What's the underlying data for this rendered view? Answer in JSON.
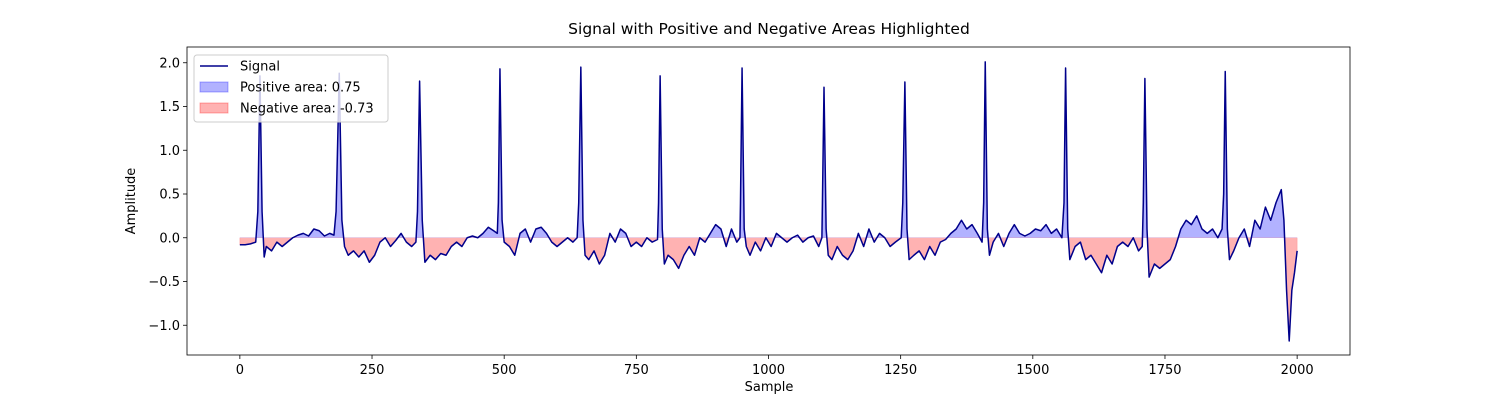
{
  "chart_data": {
    "type": "line",
    "title": "Signal with Positive and Negative Areas Highlighted",
    "x_label": "Sample",
    "y_label": "Amplitude",
    "xlim": [
      -100,
      2100
    ],
    "ylim": [
      -1.34,
      2.18
    ],
    "xticks": [
      0,
      250,
      500,
      750,
      1000,
      1250,
      1500,
      1750,
      2000
    ],
    "yticks": [
      {
        "value": -1,
        "label": "−1.0"
      },
      {
        "value": -0.5,
        "label": "−0.5"
      },
      {
        "value": 0,
        "label": "0.0"
      },
      0.5,
      {
        "value": 1,
        "label": "1.0"
      },
      1.5,
      {
        "value": 2,
        "label": "2.0"
      }
    ],
    "legend": "upper left",
    "x": [
      0,
      10,
      20,
      30,
      34,
      38,
      42,
      46,
      50,
      60,
      70,
      80,
      90,
      100,
      110,
      120,
      130,
      140,
      150,
      160,
      170,
      178,
      182,
      188,
      193,
      198,
      205,
      215,
      225,
      235,
      245,
      255,
      265,
      275,
      285,
      295,
      305,
      315,
      325,
      333,
      336,
      340,
      345,
      350,
      360,
      370,
      380,
      390,
      400,
      410,
      420,
      430,
      440,
      450,
      460,
      470,
      480,
      487,
      489,
      492,
      496,
      500,
      510,
      520,
      530,
      540,
      550,
      560,
      570,
      580,
      590,
      600,
      610,
      620,
      630,
      638,
      641,
      645,
      649,
      653,
      660,
      670,
      680,
      690,
      700,
      710,
      720,
      730,
      740,
      750,
      760,
      770,
      780,
      790,
      792,
      795,
      799,
      803,
      810,
      820,
      830,
      840,
      850,
      860,
      870,
      880,
      890,
      900,
      910,
      920,
      930,
      940,
      946,
      947,
      950,
      954,
      958,
      965,
      975,
      985,
      995,
      1005,
      1015,
      1025,
      1035,
      1045,
      1055,
      1065,
      1075,
      1085,
      1095,
      1101,
      1102,
      1105,
      1109,
      1113,
      1120,
      1130,
      1140,
      1150,
      1160,
      1170,
      1180,
      1190,
      1200,
      1210,
      1220,
      1230,
      1240,
      1251,
      1254,
      1258,
      1262,
      1266,
      1275,
      1285,
      1295,
      1305,
      1315,
      1325,
      1335,
      1345,
      1355,
      1365,
      1375,
      1385,
      1395,
      1404,
      1407,
      1410,
      1414,
      1418,
      1425,
      1435,
      1445,
      1455,
      1465,
      1475,
      1485,
      1495,
      1505,
      1515,
      1525,
      1535,
      1545,
      1555,
      1559,
      1562,
      1566,
      1570,
      1580,
      1590,
      1600,
      1610,
      1620,
      1630,
      1640,
      1650,
      1660,
      1670,
      1680,
      1690,
      1700,
      1707,
      1709,
      1712,
      1716,
      1720,
      1730,
      1740,
      1750,
      1760,
      1770,
      1780,
      1790,
      1800,
      1810,
      1820,
      1830,
      1840,
      1850,
      1858,
      1861,
      1864,
      1868,
      1872,
      1880,
      1890,
      1900,
      1910,
      1920,
      1930,
      1940,
      1950,
      1960,
      1970,
      1975,
      1980,
      1985,
      1990,
      1995,
      2000
    ],
    "series": [
      {
        "name": "Signal",
        "color": "#00008b",
        "values": [
          -0.08,
          -0.08,
          -0.07,
          -0.05,
          0.3,
          1.85,
          0.3,
          -0.22,
          -0.1,
          -0.15,
          -0.05,
          -0.1,
          -0.05,
          0.0,
          0.03,
          0.05,
          0.02,
          0.1,
          0.08,
          0.02,
          0.05,
          0.03,
          0.3,
          1.88,
          0.2,
          -0.1,
          -0.2,
          -0.15,
          -0.22,
          -0.15,
          -0.28,
          -0.2,
          -0.05,
          0.0,
          -0.1,
          -0.03,
          0.05,
          -0.05,
          -0.1,
          -0.05,
          0.3,
          1.79,
          0.2,
          -0.28,
          -0.2,
          -0.25,
          -0.18,
          -0.2,
          -0.1,
          -0.05,
          -0.1,
          0.0,
          0.02,
          0.0,
          0.05,
          0.12,
          0.08,
          0.05,
          0.4,
          1.93,
          0.2,
          -0.05,
          -0.1,
          -0.2,
          0.05,
          0.1,
          -0.05,
          0.1,
          0.12,
          0.05,
          -0.05,
          -0.1,
          -0.05,
          0.0,
          -0.05,
          0.0,
          0.4,
          1.95,
          0.2,
          -0.2,
          -0.25,
          -0.15,
          -0.3,
          -0.2,
          0.05,
          -0.05,
          0.1,
          0.05,
          -0.1,
          -0.05,
          -0.1,
          0.0,
          -0.05,
          -0.02,
          0.4,
          1.85,
          0.1,
          -0.3,
          -0.2,
          -0.25,
          -0.35,
          -0.2,
          -0.1,
          -0.2,
          0.0,
          -0.05,
          0.05,
          0.15,
          0.1,
          -0.1,
          0.1,
          -0.05,
          0.0,
          0.4,
          1.94,
          0.1,
          -0.1,
          -0.2,
          -0.05,
          -0.15,
          0.0,
          -0.1,
          0.05,
          0.0,
          -0.05,
          0.0,
          0.03,
          -0.05,
          0.0,
          0.02,
          -0.1,
          0.0,
          0.4,
          1.72,
          0.1,
          -0.2,
          -0.25,
          -0.1,
          -0.2,
          -0.25,
          -0.15,
          0.05,
          -0.1,
          0.1,
          -0.05,
          0.05,
          0.0,
          -0.1,
          -0.05,
          0.0,
          0.4,
          1.78,
          0.1,
          -0.25,
          -0.2,
          -0.15,
          -0.25,
          -0.1,
          -0.2,
          -0.05,
          -0.02,
          0.05,
          0.1,
          0.2,
          0.1,
          0.15,
          0.05,
          -0.05,
          0.4,
          2.01,
          0.1,
          -0.2,
          -0.05,
          0.05,
          -0.1,
          0.05,
          0.15,
          0.05,
          0.02,
          0.05,
          0.1,
          0.08,
          0.15,
          0.05,
          0.1,
          0.0,
          0.4,
          1.94,
          0.1,
          -0.25,
          -0.1,
          -0.05,
          -0.25,
          -0.2,
          -0.3,
          -0.4,
          -0.2,
          -0.3,
          -0.1,
          -0.05,
          -0.1,
          0.0,
          -0.15,
          -0.1,
          0.4,
          1.82,
          0.1,
          -0.45,
          -0.3,
          -0.35,
          -0.3,
          -0.25,
          -0.1,
          0.1,
          0.2,
          0.15,
          0.25,
          0.1,
          0.05,
          0.1,
          0.0,
          0.1,
          0.5,
          1.9,
          0.1,
          -0.25,
          -0.15,
          0.0,
          0.1,
          -0.1,
          0.2,
          0.1,
          0.35,
          0.2,
          0.4,
          0.55,
          0.2,
          -0.6,
          -1.18,
          -0.6,
          -0.4,
          -0.15
        ]
      }
    ],
    "fills": [
      {
        "name": "Positive area: 0.75",
        "color": "#0000ff"
      },
      {
        "name": "Negative area: -0.73",
        "color": "#ff0000"
      }
    ]
  }
}
